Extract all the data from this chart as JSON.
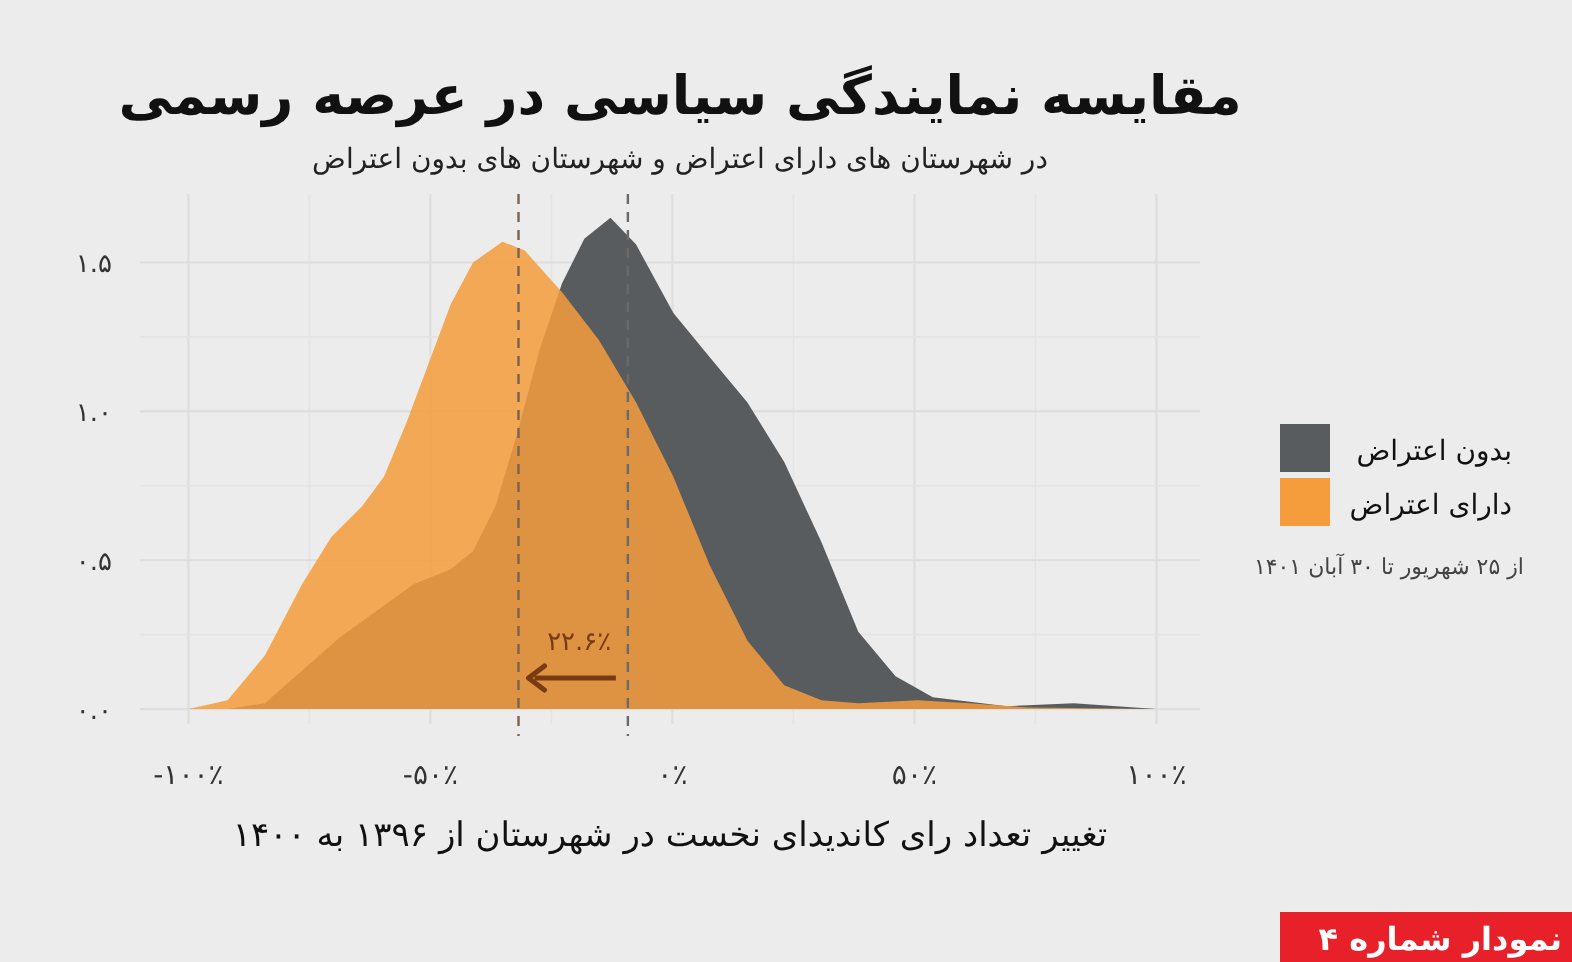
{
  "chart_data": {
    "type": "area",
    "title": "مقایسه نمایندگی سیاسی در عرصه رسمی",
    "subtitle": "در شهرستان های دارای اعتراض و شهرستان های بدون اعتراض",
    "xlabel": "تغییر تعداد رای کاندیدای نخست در شهرستان از ۱۳۹۶ به ۱۴۰۰",
    "series": [
      {
        "name": "بدون اعتراض",
        "color": "#595c5e",
        "x": [
          -100,
          -91.9,
          -84.2,
          -76.5,
          -68.8,
          -61.1,
          -53.4,
          -45.8,
          -41.2,
          -36.6,
          -32.0,
          -27.4,
          -22.8,
          -18.2,
          -12.8,
          -7.5,
          0.2,
          7.8,
          15.5,
          23.1,
          30.8,
          38.4,
          46.1,
          53.8,
          69.1,
          82.9,
          100
        ],
        "values": [
          0,
          0,
          0.02,
          0.13,
          0.24,
          0.33,
          0.42,
          0.47,
          0.53,
          0.68,
          0.93,
          1.21,
          1.43,
          1.58,
          1.65,
          1.56,
          1.33,
          1.18,
          1.03,
          0.83,
          0.56,
          0.26,
          0.11,
          0.04,
          0.01,
          0.02,
          0
        ]
      },
      {
        "name": "دارای اعتراض",
        "color": "#f59c3c",
        "x": [
          -100,
          -91.9,
          -84.2,
          -76.5,
          -70.4,
          -64.2,
          -59.6,
          -55.0,
          -50.4,
          -45.8,
          -41.2,
          -35.1,
          -30.5,
          -22.8,
          -15.2,
          -7.5,
          0.2,
          7.8,
          15.5,
          23.1,
          30.8,
          38.4,
          50.7,
          61.4,
          73.6,
          100
        ],
        "values": [
          0,
          0.03,
          0.18,
          0.42,
          0.58,
          0.68,
          0.78,
          0.96,
          1.16,
          1.36,
          1.5,
          1.57,
          1.54,
          1.4,
          1.24,
          1.03,
          0.78,
          0.48,
          0.23,
          0.08,
          0.03,
          0.02,
          0.03,
          0.02,
          0.005,
          0
        ]
      }
    ],
    "xlim": [
      -110,
      109
    ],
    "ylim": [
      -0.05,
      1.73
    ],
    "xticks": [
      {
        "value": -100,
        "label": "-۱۰۰٪"
      },
      {
        "value": -75,
        "label": null
      },
      {
        "value": -50,
        "label": "-۵۰٪"
      },
      {
        "value": -25,
        "label": null
      },
      {
        "value": 0,
        "label": "۰٪"
      },
      {
        "value": 25,
        "label": null
      },
      {
        "value": 50,
        "label": "۵۰٪"
      },
      {
        "value": 75,
        "label": null
      },
      {
        "value": 100,
        "label": "۱۰۰٪"
      }
    ],
    "yticks": [
      {
        "value": 0,
        "label": "۰.۰"
      },
      {
        "value": 0.25,
        "label": null
      },
      {
        "value": 0.5,
        "label": "۰.۵"
      },
      {
        "value": 0.75,
        "label": null
      },
      {
        "value": 1,
        "label": "۱.۰"
      },
      {
        "value": 1.25,
        "label": null
      },
      {
        "value": 1.5,
        "label": "۱.۵"
      }
    ],
    "grid": true,
    "legend": "right",
    "ref_lines": [
      {
        "axis": "x",
        "value": -31.8,
        "color": "#7a6350",
        "line_style": "dashed"
      },
      {
        "axis": "x",
        "value": -9.2,
        "color": "#6a6a6a",
        "line_style": "dashed"
      }
    ],
    "annotations": [
      "۲۲.۶٪",
      "از ۲۵ شهریور تا ۳۰ آبان ۱۴۰۱",
      "نمودار شماره ۴"
    ]
  }
}
